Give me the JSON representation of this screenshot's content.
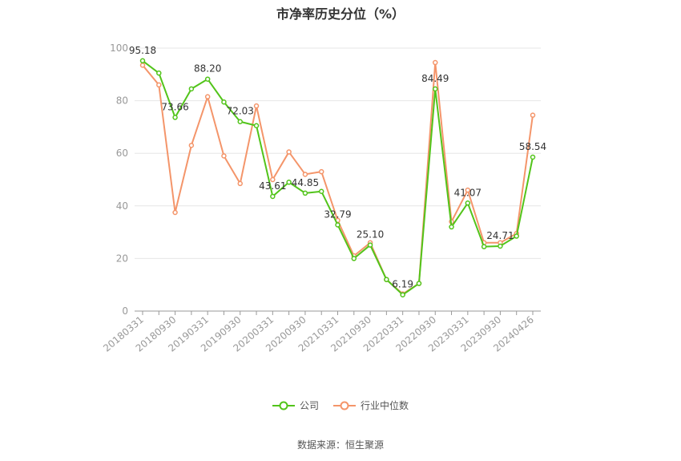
{
  "chart_data": {
    "type": "line",
    "title": "市净率历史分位（%）",
    "ylim": [
      0,
      100
    ],
    "yticks": [
      0,
      20,
      40,
      60,
      80,
      100
    ],
    "grid": true,
    "legend_position": "bottom",
    "x": [
      "20180331",
      "20180630",
      "20180930",
      "20181231",
      "20190331",
      "20190630",
      "20190930",
      "20191231",
      "20200331",
      "20200630",
      "20200930",
      "20201231",
      "20210331",
      "20210630",
      "20210930",
      "20211231",
      "20220331",
      "20220630",
      "20220930",
      "20221231",
      "20230331",
      "20230630",
      "20230930",
      "20231231",
      "20240426"
    ],
    "x_tick_labels": [
      "20180331",
      "20180930",
      "20190331",
      "20190930",
      "20200331",
      "20200930",
      "20210331",
      "20210930",
      "20220331",
      "20220930",
      "20230331",
      "20230930",
      "20240426"
    ],
    "series": [
      {
        "name": "公司",
        "color": "#52c41a",
        "values": [
          95.18,
          90.5,
          73.66,
          84.5,
          88.2,
          79.5,
          72.03,
          70.5,
          43.61,
          49.0,
          44.85,
          45.5,
          32.79,
          20.0,
          25.1,
          12.0,
          6.19,
          10.5,
          84.49,
          32.0,
          41.07,
          24.5,
          24.71,
          28.5,
          58.54
        ],
        "labels": {
          "0": "95.18",
          "2": "73.66",
          "4": "88.20",
          "6": "72.03",
          "8": "43.61",
          "10": "44.85",
          "12": "32.79",
          "14": "25.10",
          "16": "6.19",
          "18": "84.49",
          "20": "41.07",
          "22": "24.71",
          "24": "58.54"
        }
      },
      {
        "name": "行业中位数",
        "color": "#f4956a",
        "values": [
          93.5,
          86.0,
          37.5,
          63.0,
          81.5,
          59.0,
          48.5,
          78.0,
          50.0,
          60.5,
          52.0,
          53.0,
          34.5,
          21.0,
          26.0,
          12.0,
          6.5,
          10.5,
          94.5,
          34.0,
          46.0,
          26.0,
          26.0,
          29.5,
          74.5
        ]
      }
    ]
  },
  "legend": [
    "公司",
    "行业中位数"
  ],
  "source": "数据来源：恒生聚源"
}
